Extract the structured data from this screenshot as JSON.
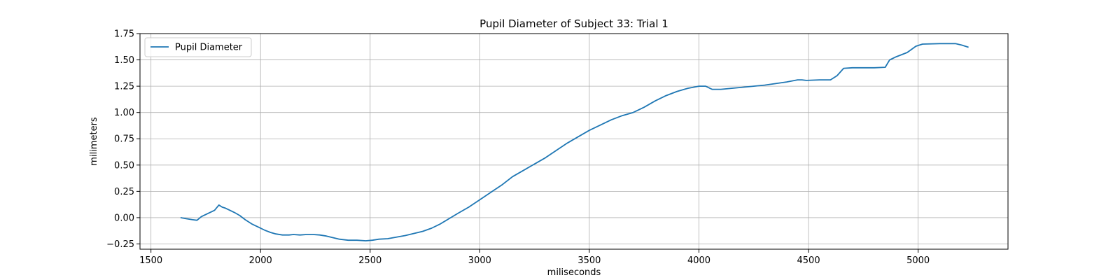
{
  "chart_data": {
    "type": "line",
    "title": "Pupil Diameter of Subject 33: Trial 1",
    "xlabel": "miliseconds",
    "ylabel": "milimeters",
    "xlim": [
      1450,
      5410
    ],
    "ylim": [
      -0.3,
      1.75
    ],
    "xticks": [
      1500,
      2000,
      2500,
      3000,
      3500,
      4000,
      4500,
      5000
    ],
    "yticks": [
      -0.25,
      0.0,
      0.25,
      0.5,
      0.75,
      1.0,
      1.25,
      1.5,
      1.75
    ],
    "ytick_labels": [
      "−0.25",
      "0.00",
      "0.25",
      "0.50",
      "0.75",
      "1.00",
      "1.25",
      "1.50",
      "1.75"
    ],
    "grid": true,
    "legend_position": "top-left",
    "line_color": "#1f77b4",
    "series": [
      {
        "name": "Pupil Diameter",
        "x": [
          1635,
          1660,
          1690,
          1710,
          1730,
          1760,
          1790,
          1810,
          1825,
          1840,
          1860,
          1880,
          1905,
          1930,
          1960,
          1990,
          2020,
          2045,
          2070,
          2100,
          2130,
          2150,
          2180,
          2210,
          2240,
          2270,
          2300,
          2330,
          2360,
          2400,
          2440,
          2480,
          2510,
          2540,
          2580,
          2620,
          2660,
          2700,
          2740,
          2780,
          2820,
          2860,
          2900,
          2950,
          3000,
          3050,
          3100,
          3150,
          3200,
          3250,
          3300,
          3350,
          3400,
          3450,
          3500,
          3550,
          3600,
          3650,
          3700,
          3750,
          3800,
          3850,
          3900,
          3950,
          4000,
          4030,
          4060,
          4100,
          4150,
          4200,
          4250,
          4300,
          4350,
          4400,
          4450,
          4470,
          4490,
          4550,
          4600,
          4630,
          4660,
          4700,
          4750,
          4800,
          4850,
          4870,
          4900,
          4950,
          4990,
          5020,
          5100,
          5170,
          5200,
          5230
        ],
        "y": [
          0.0,
          -0.01,
          -0.02,
          -0.025,
          0.01,
          0.04,
          0.07,
          0.12,
          0.1,
          0.09,
          0.07,
          0.05,
          0.02,
          -0.02,
          -0.06,
          -0.09,
          -0.12,
          -0.14,
          -0.155,
          -0.165,
          -0.165,
          -0.16,
          -0.165,
          -0.16,
          -0.16,
          -0.165,
          -0.175,
          -0.19,
          -0.205,
          -0.215,
          -0.215,
          -0.22,
          -0.215,
          -0.205,
          -0.2,
          -0.185,
          -0.17,
          -0.15,
          -0.13,
          -0.1,
          -0.06,
          -0.01,
          0.04,
          0.1,
          0.17,
          0.24,
          0.31,
          0.39,
          0.45,
          0.51,
          0.57,
          0.64,
          0.71,
          0.77,
          0.83,
          0.88,
          0.93,
          0.97,
          1.0,
          1.05,
          1.11,
          1.16,
          1.2,
          1.23,
          1.25,
          1.25,
          1.22,
          1.22,
          1.23,
          1.24,
          1.25,
          1.26,
          1.275,
          1.29,
          1.31,
          1.31,
          1.305,
          1.31,
          1.31,
          1.35,
          1.42,
          1.425,
          1.425,
          1.425,
          1.43,
          1.5,
          1.53,
          1.57,
          1.63,
          1.65,
          1.655,
          1.655,
          1.64,
          1.62
        ]
      }
    ]
  }
}
